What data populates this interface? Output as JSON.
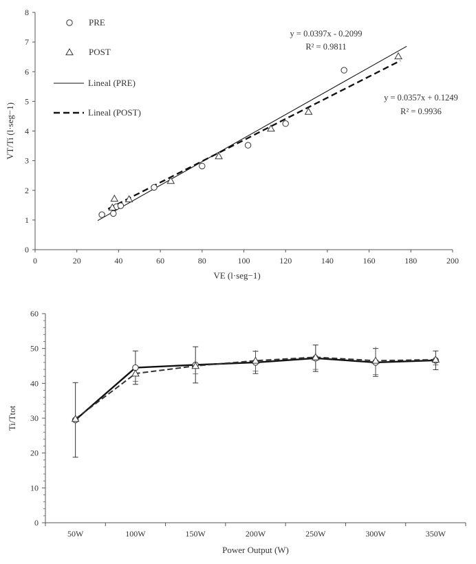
{
  "chart_data": [
    {
      "type": "scatter",
      "xlabel": "VE  (l·seg−1)",
      "ylabel": "VT/Ti  (l·seg−1)",
      "xlim": [
        0,
        200
      ],
      "ylim": [
        0,
        8
      ],
      "xticks": [
        "0",
        "20",
        "40",
        "60",
        "80",
        "100",
        "120",
        "140",
        "160",
        "180",
        "200"
      ],
      "yticks": [
        "0",
        "1",
        "2",
        "3",
        "4",
        "5",
        "6",
        "7",
        "8"
      ],
      "series": [
        {
          "name": "PRE",
          "marker": "circle",
          "x": [
            32,
            37.5,
            39,
            41,
            57,
            80,
            102,
            120,
            148
          ],
          "y": [
            1.18,
            1.22,
            1.45,
            1.48,
            2.1,
            2.82,
            3.52,
            4.25,
            6.05
          ]
        },
        {
          "name": "POST",
          "marker": "triangle",
          "x": [
            37,
            38,
            45,
            65,
            88,
            113,
            131,
            174
          ],
          "y": [
            1.42,
            1.72,
            1.7,
            2.32,
            3.15,
            4.08,
            4.65,
            6.52
          ]
        }
      ],
      "trendlines": [
        {
          "name": "Lineal (PRE)",
          "style": "solid",
          "slope": 0.0397,
          "intercept": -0.2099,
          "x_range": [
            30,
            178
          ],
          "equation": "y = 0.0397x - 0.2099",
          "r2": "R² = 0.9811"
        },
        {
          "name": "Lineal (POST)",
          "style": "dashed",
          "slope": 0.0357,
          "intercept": 0.1249,
          "x_range": [
            35,
            175
          ],
          "equation": "y = 0.0357x + 0.1249",
          "r2": "R² = 0.9936"
        }
      ],
      "legend": [
        "PRE",
        "POST",
        "Lineal (PRE)",
        "Lineal (POST)"
      ],
      "legend_placement": "top-left"
    },
    {
      "type": "line",
      "xlabel": "Power Output (W)",
      "ylabel": "Ti/Ttot",
      "ylim": [
        0,
        60
      ],
      "yticks": [
        "0",
        "10",
        "20",
        "30",
        "40",
        "50",
        "60"
      ],
      "categories": [
        "50W",
        "100W",
        "150W",
        "200W",
        "250W",
        "300W",
        "350W"
      ],
      "series": [
        {
          "name": "PRE",
          "style": "solid",
          "marker": "circle",
          "values": [
            29.5,
            44.5,
            45.3,
            46.0,
            47.2,
            46.0,
            46.6
          ],
          "error": [
            10.7,
            4.8,
            5.2,
            3.2,
            3.8,
            4.0,
            2.7
          ]
        },
        {
          "name": "POST",
          "style": "dashed",
          "marker": "triangle",
          "values": [
            29.8,
            42.8,
            45.0,
            46.5,
            47.5,
            46.5,
            46.8
          ],
          "error": [
            0,
            2.2,
            2.3,
            3.0,
            3.5,
            4.0,
            1.5
          ]
        }
      ]
    }
  ]
}
